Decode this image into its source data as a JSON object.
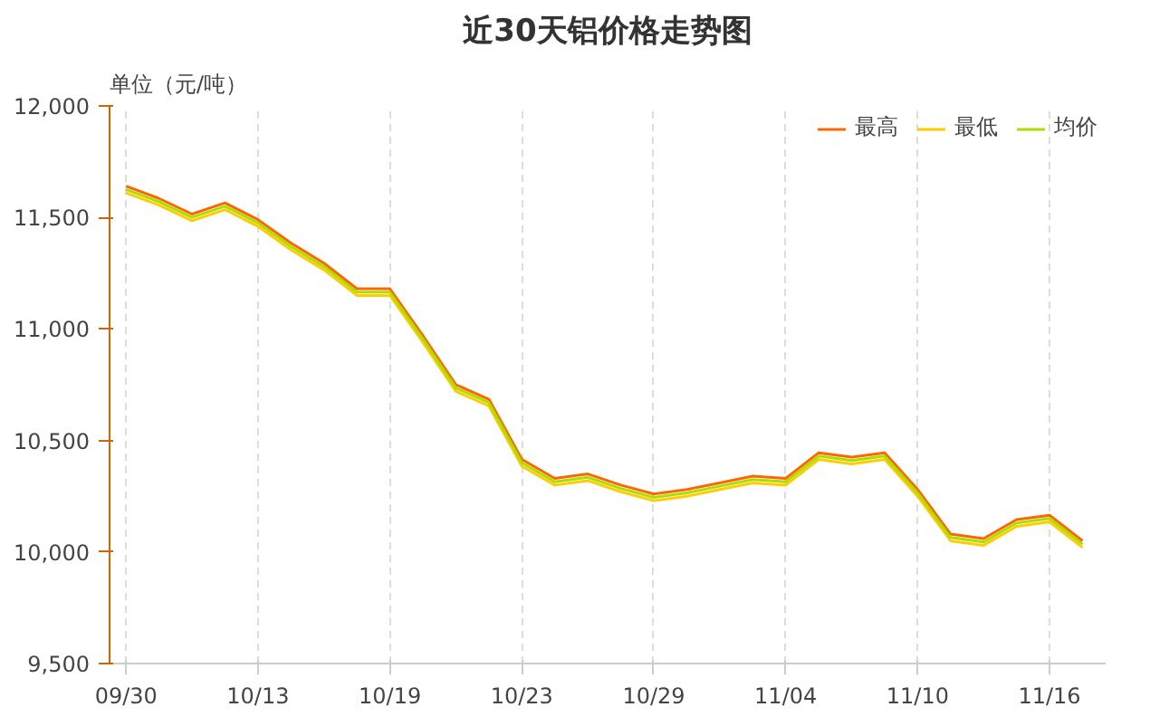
{
  "chart_data": {
    "type": "line",
    "title": "近30天铝价格走势图",
    "ylabel": "单位（元/吨）",
    "categories": [
      "09/30",
      null,
      null,
      null,
      "10/13",
      null,
      null,
      null,
      "10/19",
      null,
      null,
      null,
      "10/23",
      null,
      null,
      null,
      "10/29",
      null,
      null,
      null,
      "11/04",
      null,
      null,
      null,
      "11/10",
      null,
      null,
      null,
      "11/16",
      null
    ],
    "series": [
      {
        "name": "最高",
        "color": "#ff6600",
        "values": [
          11640,
          11585,
          11515,
          11565,
          11490,
          11385,
          11295,
          11180,
          11180,
          10970,
          10750,
          10685,
          10415,
          10330,
          10350,
          10300,
          10260,
          10280,
          10310,
          10340,
          10330,
          10445,
          10425,
          10445,
          10280,
          10080,
          10060,
          10145,
          10165,
          10050
        ]
      },
      {
        "name": "最低",
        "color": "#ffcc00",
        "values": [
          11610,
          11555,
          11485,
          11535,
          11460,
          11355,
          11265,
          11150,
          11150,
          10940,
          10720,
          10655,
          10385,
          10300,
          10320,
          10270,
          10230,
          10250,
          10280,
          10310,
          10300,
          10415,
          10395,
          10415,
          10250,
          10050,
          10030,
          10115,
          10135,
          10020
        ]
      },
      {
        "name": "均价",
        "color": "#aadd00",
        "values": [
          11625,
          11570,
          11500,
          11550,
          11475,
          11370,
          11280,
          11165,
          11165,
          10955,
          10735,
          10670,
          10400,
          10315,
          10335,
          10285,
          10245,
          10265,
          10295,
          10325,
          10315,
          10430,
          10410,
          10430,
          10265,
          10065,
          10045,
          10130,
          10150,
          10035
        ]
      }
    ],
    "ylim": [
      9500,
      12000
    ],
    "yticks": [
      {
        "value": 9500,
        "label": "9,500"
      },
      {
        "value": 10000,
        "label": "10,000"
      },
      {
        "value": 10500,
        "label": "10,500"
      },
      {
        "value": 11000,
        "label": "11,000"
      },
      {
        "value": 11500,
        "label": "11,500"
      },
      {
        "value": 12000,
        "label": "12,000"
      }
    ],
    "grid": "x",
    "legend": "top right",
    "marker": "none",
    "line_style": "solid"
  }
}
